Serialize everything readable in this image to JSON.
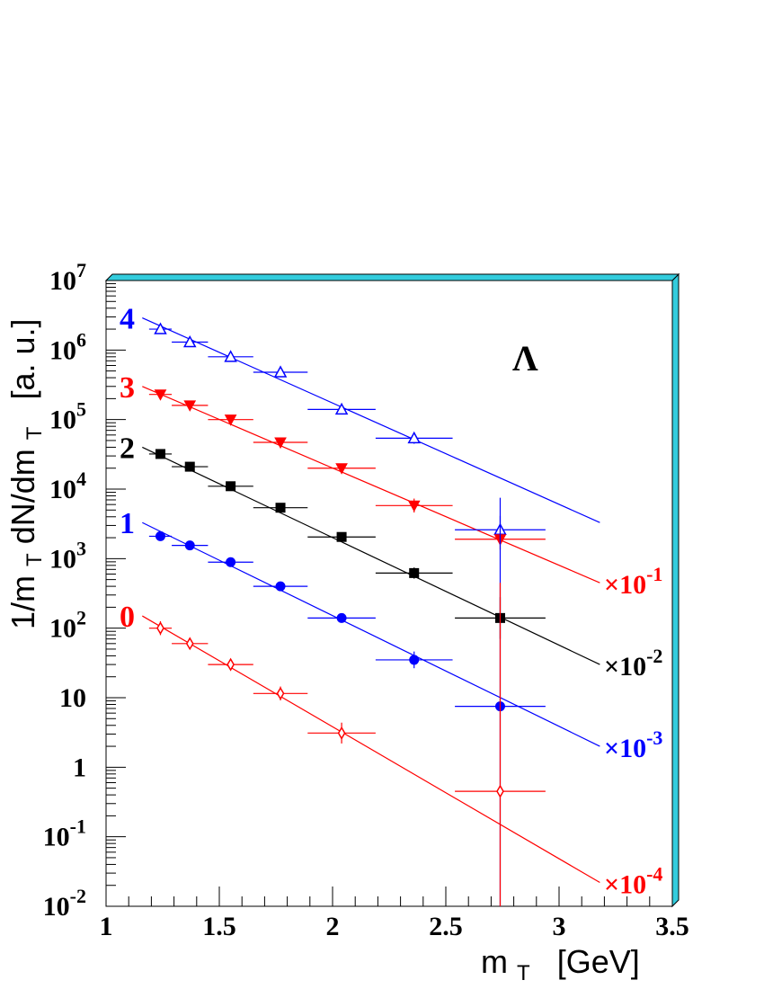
{
  "chart_data": {
    "type": "scatter",
    "title": "",
    "annotation": "Λ",
    "xlabel": "m",
    "xlabel_sub": "T",
    "xlabel_unit": "[GeV]",
    "ylabel_parts": [
      "1/m",
      "T",
      " dN/dm",
      "T",
      "  [a. u.]"
    ],
    "xlim": [
      1,
      3.5
    ],
    "ylim": [
      0.01,
      10000000
    ],
    "y_scale": "log",
    "x_ticks": [
      "1",
      "1.5",
      "2",
      "2.5",
      "3",
      "3.5"
    ],
    "y_ticks": [
      {
        "value": 0.01,
        "base": "10",
        "exp": "-2"
      },
      {
        "value": 0.1,
        "base": "10",
        "exp": "-1"
      },
      {
        "value": 1,
        "base": "1",
        "exp": ""
      },
      {
        "value": 10,
        "base": "10",
        "exp": ""
      },
      {
        "value": 100,
        "base": "10",
        "exp": "2"
      },
      {
        "value": 1000,
        "base": "10",
        "exp": "3"
      },
      {
        "value": 10000,
        "base": "10",
        "exp": "4"
      },
      {
        "value": 100000,
        "base": "10",
        "exp": "5"
      },
      {
        "value": 1000000,
        "base": "10",
        "exp": "6"
      },
      {
        "value": 10000000,
        "base": "10",
        "exp": "7"
      }
    ],
    "frame_color": "#33ccdd",
    "series": [
      {
        "label": "4",
        "color": "#0000ff",
        "marker": "open-triangle",
        "scale_label": "",
        "x": [
          1.24,
          1.37,
          1.55,
          1.77,
          2.04,
          2.36,
          2.74
        ],
        "y": [
          2000000,
          1300000,
          800000,
          480000,
          140000,
          54000,
          2600
        ],
        "xerr": [
          0.05,
          0.08,
          0.1,
          0.12,
          0.15,
          0.17,
          0.2
        ],
        "yerr_log": [
          0.02,
          0.02,
          0.02,
          0.03,
          0.04,
          0.08,
          0.2
        ],
        "fit": {
          "x": [
            1.16,
            3.18
          ],
          "y": [
            2900000,
            3300
          ]
        }
      },
      {
        "label": "3",
        "color": "#ff0000",
        "marker": "filled-down-triangle",
        "scale_label": "×10",
        "scale_exp": "-1",
        "x": [
          1.24,
          1.37,
          1.55,
          1.77,
          2.04,
          2.36,
          2.74
        ],
        "y": [
          230000,
          160000,
          100000,
          47000,
          20000,
          5800,
          1900
        ],
        "xerr": [
          0.05,
          0.08,
          0.1,
          0.12,
          0.15,
          0.17,
          0.2
        ],
        "yerr_log": [
          0.02,
          0.02,
          0.02,
          0.03,
          0.04,
          0.1,
          0.15
        ],
        "fit": {
          "x": [
            1.16,
            3.18
          ],
          "y": [
            300000,
            450
          ]
        }
      },
      {
        "label": "2",
        "color": "#000000",
        "marker": "filled-square",
        "scale_label": "×10",
        "scale_exp": "-2",
        "x": [
          1.24,
          1.37,
          1.55,
          1.77,
          2.04,
          2.36,
          2.74
        ],
        "y": [
          32000,
          21000,
          11000,
          5400,
          2050,
          620,
          140
        ],
        "xerr": [
          0.05,
          0.08,
          0.1,
          0.12,
          0.15,
          0.17,
          0.2
        ],
        "yerr_log": [
          0.02,
          0.02,
          0.02,
          0.03,
          0.04,
          0.08,
          0.3
        ],
        "fit": {
          "x": [
            1.16,
            3.18
          ],
          "y": [
            40000,
            30
          ]
        }
      },
      {
        "label": "1",
        "color": "#0000ff",
        "marker": "filled-circle",
        "scale_label": "×10",
        "scale_exp": "-3",
        "x": [
          1.24,
          1.37,
          1.55,
          1.77,
          2.04,
          2.36,
          2.74
        ],
        "y": [
          2100,
          1550,
          890,
          400,
          140,
          35,
          7.5
        ],
        "xerr": [
          0.05,
          0.08,
          0.1,
          0.12,
          0.15,
          0.17,
          0.2
        ],
        "yerr_log": [
          0.02,
          0.02,
          0.03,
          0.03,
          0.05,
          0.12,
          3
        ],
        "fit": {
          "x": [
            1.16,
            3.18
          ],
          "y": [
            3300,
            2
          ]
        }
      },
      {
        "label": "0",
        "color": "#ff0000",
        "marker": "open-diamond",
        "scale_label": "×10",
        "scale_exp": "-4",
        "x": [
          1.24,
          1.37,
          1.55,
          1.77,
          2.04,
          2.36,
          2.74
        ],
        "y": [
          100,
          60,
          30,
          11.5,
          3.1,
          null,
          0.45
        ],
        "xerr": [
          0.05,
          0.08,
          0.1,
          0.12,
          0.15,
          0.17,
          0.2
        ],
        "yerr_log": [
          0.1,
          0.06,
          0.05,
          0.1,
          0.15,
          0,
          3
        ],
        "fit": {
          "x": [
            1.16,
            3.18
          ],
          "y": [
            150,
            0.022
          ]
        }
      }
    ]
  }
}
